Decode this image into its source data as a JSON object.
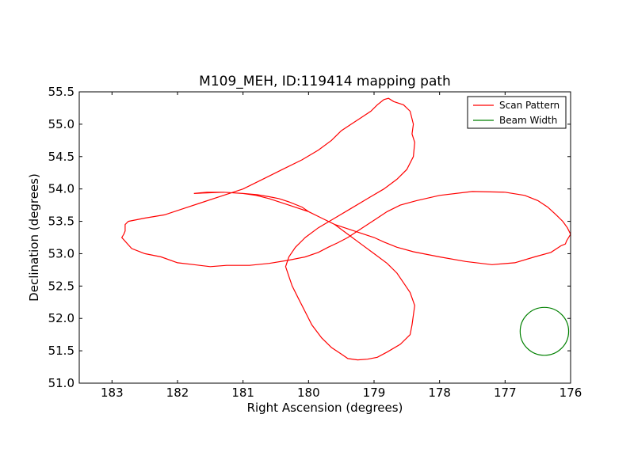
{
  "chart_data": {
    "type": "line",
    "title": "M109_MEH, ID:119414 mapping path",
    "xlabel": "Right Ascension (degrees)",
    "ylabel": "Declination (degrees)",
    "xlim": [
      183.5,
      176.0
    ],
    "ylim": [
      51.0,
      55.5
    ],
    "x_ticks": [
      "183",
      "182",
      "181",
      "180",
      "179",
      "178",
      "177",
      "176"
    ],
    "y_ticks": [
      "51.0",
      "51.5",
      "52.0",
      "52.5",
      "53.0",
      "53.5",
      "54.0",
      "54.5",
      "55.0",
      "55.5"
    ],
    "grid": false,
    "legend_position": "top-right",
    "series": [
      {
        "name": "Scan Pattern",
        "type": "line",
        "color": "#ff0000",
        "x": [
          181.75,
          181.55,
          181.3,
          181.0,
          180.8,
          180.6,
          180.3,
          180.0,
          179.8,
          179.6,
          179.45,
          179.3,
          179.15,
          179.0,
          178.85,
          178.65,
          178.4,
          178.0,
          177.6,
          177.2,
          176.85,
          176.55,
          176.3,
          176.15,
          176.08,
          176.06,
          176.0,
          176.05,
          176.12,
          176.22,
          176.35,
          176.5,
          176.7,
          177.0,
          177.5,
          178.0,
          178.35,
          178.6,
          178.8,
          178.95,
          179.1,
          179.25,
          179.4,
          179.55,
          179.7,
          179.85,
          180.05,
          180.3,
          180.6,
          180.9,
          181.25,
          181.5,
          181.75,
          182.0,
          182.25,
          182.5,
          182.7,
          182.85,
          182.82,
          182.8,
          182.8,
          182.8,
          182.75,
          182.5,
          182.2,
          181.9,
          181.6,
          181.3,
          181.0,
          180.7,
          180.4,
          180.1,
          179.85,
          179.65,
          179.5,
          179.35,
          179.2,
          179.05,
          178.95,
          178.85,
          178.78,
          178.7,
          178.55,
          178.45,
          178.4,
          178.42,
          178.38,
          178.4,
          178.5,
          178.65,
          178.85,
          179.1,
          179.35,
          179.6,
          179.85,
          180.05,
          180.2,
          180.3,
          180.35,
          180.3,
          180.25,
          180.15,
          180.05,
          179.95,
          179.8,
          179.65,
          179.5,
          179.4,
          179.25,
          179.1,
          178.95,
          178.8,
          178.6,
          178.45,
          178.42,
          178.4,
          178.38,
          178.45,
          178.55,
          178.65,
          178.8,
          179.0,
          179.2,
          179.4,
          179.6,
          179.8,
          180.0,
          180.1,
          180.3,
          180.45,
          180.6,
          180.78,
          181.0,
          181.3,
          181.55,
          181.75
        ],
        "y": [
          53.93,
          53.95,
          53.95,
          53.93,
          53.9,
          53.85,
          53.75,
          53.65,
          53.55,
          53.45,
          53.4,
          53.35,
          53.3,
          53.25,
          53.18,
          53.1,
          53.03,
          52.95,
          52.88,
          52.83,
          52.86,
          52.95,
          53.02,
          53.12,
          53.15,
          53.2,
          53.3,
          53.4,
          53.5,
          53.6,
          53.72,
          53.82,
          53.9,
          53.95,
          53.96,
          53.9,
          53.82,
          53.75,
          53.65,
          53.55,
          53.45,
          53.35,
          53.25,
          53.17,
          53.1,
          53.02,
          52.95,
          52.9,
          52.85,
          52.82,
          52.82,
          52.8,
          52.83,
          52.86,
          52.95,
          53.0,
          53.08,
          53.25,
          53.3,
          53.35,
          53.4,
          53.45,
          53.5,
          53.55,
          53.6,
          53.7,
          53.8,
          53.9,
          54.0,
          54.15,
          54.3,
          54.45,
          54.6,
          54.75,
          54.9,
          55.0,
          55.1,
          55.2,
          55.3,
          55.38,
          55.4,
          55.35,
          55.3,
          55.2,
          55.0,
          54.85,
          54.72,
          54.5,
          54.3,
          54.15,
          54.0,
          53.85,
          53.7,
          53.55,
          53.4,
          53.25,
          53.1,
          52.95,
          52.8,
          52.65,
          52.5,
          52.3,
          52.1,
          51.9,
          51.7,
          51.55,
          51.45,
          51.38,
          51.36,
          51.37,
          51.4,
          51.48,
          51.6,
          51.75,
          51.9,
          52.05,
          52.2,
          52.4,
          52.55,
          52.7,
          52.85,
          53.0,
          53.15,
          53.3,
          53.45,
          53.55,
          53.65,
          53.72,
          53.8,
          53.85,
          53.88,
          53.91,
          53.93,
          53.95,
          53.94,
          53.93
        ]
      },
      {
        "name": "Beam Width",
        "type": "circle",
        "color": "#008000",
        "center": [
          176.4,
          51.8
        ],
        "radius_deg": 0.37
      }
    ]
  }
}
